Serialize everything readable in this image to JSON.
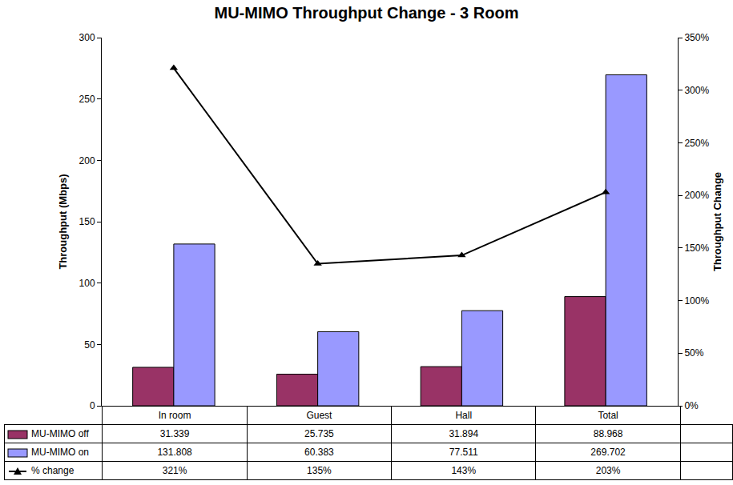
{
  "chart_data": {
    "type": "bar",
    "title": "MU-MIMO Throughput Change - 3 Room",
    "y_label": "Throughput (Mbps)",
    "y2_label": "Throughput Change",
    "categories": [
      "In room",
      "Guest",
      "Hall",
      "Total"
    ],
    "series": [
      {
        "name": "MU-MIMO off",
        "color": "#993366",
        "values": [
          31.339,
          25.735,
          31.894,
          88.968
        ]
      },
      {
        "name": "MU-MIMO on",
        "color": "#9999ff",
        "values": [
          131.808,
          60.383,
          77.511,
          269.702
        ]
      },
      {
        "name": "% change",
        "type": "line",
        "axis": "y2",
        "color": "#000000",
        "marker": "triangle",
        "values": [
          321,
          135,
          143,
          203
        ],
        "value_labels": [
          "321%",
          "135%",
          "143%",
          "203%"
        ]
      }
    ],
    "ylim": [
      0,
      300
    ],
    "yticks": [
      0,
      50,
      100,
      150,
      200,
      250,
      300
    ],
    "y2lim": [
      0,
      350
    ],
    "y2ticks": [
      {
        "value": 0,
        "label": "0%"
      },
      {
        "value": 50,
        "label": "50%"
      },
      {
        "value": 100,
        "label": "100%"
      },
      {
        "value": 150,
        "label": "150%"
      },
      {
        "value": 200,
        "label": "200%"
      },
      {
        "value": 250,
        "label": "250%"
      },
      {
        "value": 300,
        "label": "300%"
      },
      {
        "value": 350,
        "label": "350%"
      }
    ],
    "grid": false
  }
}
